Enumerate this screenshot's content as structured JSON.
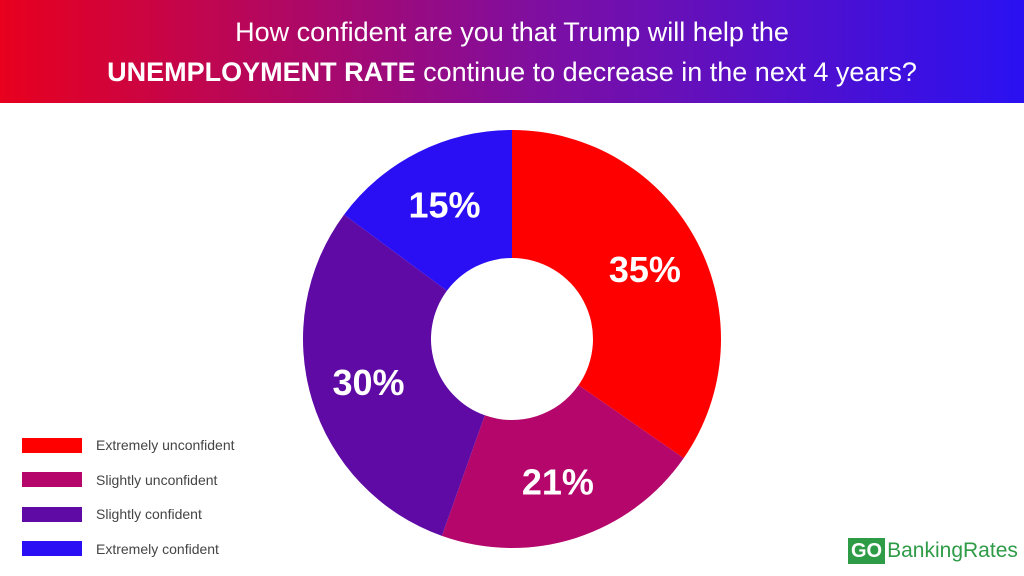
{
  "header": {
    "line1": "How confident are you that Trump will help the",
    "line2_bold": "UNEMPLOYMENT RATE",
    "line2_rest": " continue to decrease in the next 4 years?"
  },
  "chart_data": {
    "type": "pie",
    "donut": true,
    "title": "How confident are you that Trump will help the UNEMPLOYMENT RATE continue to decrease in the next 4 years?",
    "legend_position": "bottom-left",
    "slices": [
      {
        "label": "Extremely unconfident",
        "value": 35,
        "display": "35%",
        "color": "#ff0000"
      },
      {
        "label": "Slightly unconfident",
        "value": 21,
        "display": "21%",
        "color": "#b5076b"
      },
      {
        "label": "Slightly confident",
        "value": 30,
        "display": "30%",
        "color": "#5f0aa5"
      },
      {
        "label": "Extremely confident",
        "value": 15,
        "display": "15%",
        "color": "#2a0ff5"
      }
    ]
  },
  "logo": {
    "go": "GO",
    "rest": "BankingRates"
  }
}
